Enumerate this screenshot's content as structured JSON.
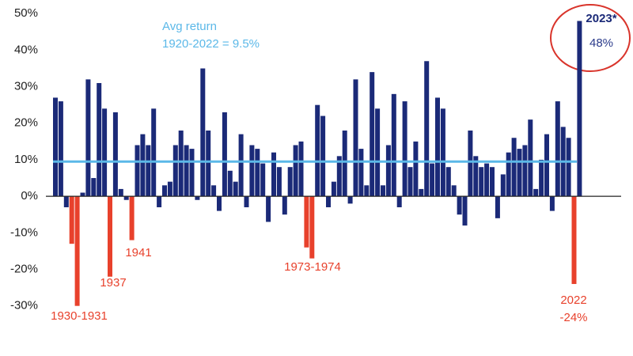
{
  "chart_data": {
    "type": "bar",
    "ylim": [
      -37,
      52
    ],
    "yticks": [
      {
        "value": 50,
        "label": "50%"
      },
      {
        "value": 40,
        "label": "40%"
      },
      {
        "value": 30,
        "label": "30%"
      },
      {
        "value": 20,
        "label": "20%"
      },
      {
        "value": 10,
        "label": "10%"
      },
      {
        "value": 0,
        "label": "0%"
      },
      {
        "value": -10,
        "label": "-10%"
      },
      {
        "value": -20,
        "label": "-20%"
      },
      {
        "value": -30,
        "label": "-30%"
      }
    ],
    "series": [
      {
        "color": "#1b2a78",
        "values": [
          27,
          26,
          -3,
          null,
          null,
          1,
          32,
          5,
          31,
          24,
          null,
          23,
          2,
          -1,
          null,
          14,
          17,
          14,
          24,
          -3,
          3,
          4,
          14,
          18,
          14,
          13,
          -1,
          35,
          18,
          3,
          -4,
          23,
          7,
          4,
          17,
          -3,
          14,
          13,
          9,
          -7,
          12,
          8,
          -5,
          8,
          14,
          15,
          null,
          null,
          25,
          22,
          -3,
          4,
          11,
          18,
          -2,
          32,
          13,
          3,
          34,
          24,
          3,
          14,
          28,
          -3,
          26,
          8,
          15,
          2,
          37,
          9,
          27,
          24,
          8,
          3,
          -5,
          -8,
          18,
          11,
          8,
          9,
          8,
          -6,
          6,
          12,
          16,
          13,
          14,
          21,
          2,
          10,
          17,
          -4,
          26,
          19,
          16,
          null,
          48
        ],
        "value_labels": [
          null,
          null,
          null,
          null,
          null,
          null,
          null,
          null,
          null,
          null,
          null,
          null,
          null,
          null,
          null,
          null,
          null,
          null,
          null,
          null,
          null,
          null,
          null,
          null,
          null,
          null,
          null,
          null,
          null,
          null,
          null,
          null,
          null,
          null,
          null,
          null,
          null,
          null,
          null,
          null,
          null,
          null,
          null,
          null,
          null,
          null,
          null,
          null,
          null,
          null,
          null,
          null,
          null,
          null,
          null,
          null,
          null,
          null,
          null,
          null,
          null,
          null,
          null,
          null,
          null,
          null,
          null,
          null,
          null,
          null,
          null,
          null,
          null,
          null,
          null,
          null,
          null,
          null,
          null,
          null,
          null,
          null,
          null,
          null,
          null,
          null,
          null,
          null,
          null,
          null,
          null,
          null,
          null,
          null,
          null,
          null,
          "48%"
        ]
      },
      {
        "color": "#e8412c",
        "values": [
          null,
          null,
          null,
          -13,
          -30,
          null,
          null,
          null,
          null,
          null,
          -22,
          null,
          null,
          null,
          -12,
          null,
          null,
          null,
          null,
          null,
          null,
          null,
          null,
          null,
          null,
          null,
          null,
          null,
          null,
          null,
          null,
          null,
          null,
          null,
          null,
          null,
          null,
          null,
          null,
          null,
          null,
          null,
          null,
          null,
          null,
          null,
          -14,
          -17,
          null,
          null,
          null,
          null,
          null,
          null,
          null,
          null,
          null,
          null,
          null,
          null,
          null,
          null,
          null,
          null,
          null,
          null,
          null,
          null,
          null,
          null,
          null,
          null,
          null,
          null,
          null,
          null,
          null,
          null,
          null,
          null,
          null,
          null,
          null,
          null,
          null,
          null,
          null,
          null,
          null,
          null,
          null,
          null,
          null,
          null,
          null,
          -24,
          null
        ],
        "value_labels": [
          null,
          null,
          null,
          null,
          null,
          null,
          null,
          null,
          null,
          null,
          null,
          null,
          null,
          null,
          null,
          null,
          null,
          null,
          null,
          null,
          null,
          null,
          null,
          null,
          null,
          null,
          null,
          null,
          null,
          null,
          null,
          null,
          null,
          null,
          null,
          null,
          null,
          null,
          null,
          null,
          null,
          null,
          null,
          null,
          null,
          null,
          null,
          null,
          null,
          null,
          null,
          null,
          null,
          null,
          null,
          null,
          null,
          null,
          null,
          null,
          null,
          null,
          null,
          null,
          null,
          null,
          null,
          null,
          null,
          null,
          null,
          null,
          null,
          null,
          null,
          null,
          null,
          null,
          null,
          null,
          null,
          null,
          null,
          null,
          null,
          null,
          null,
          null,
          null,
          null,
          null,
          null,
          null,
          null,
          null,
          "-24%",
          null
        ]
      }
    ],
    "avg_line": {
      "value": 9.5,
      "color": "#5bb8e8",
      "label": [
        "Avg return",
        "1920-2022 = 9.5%"
      ]
    },
    "annotations": [
      "1930-1931",
      "1937",
      "1941",
      "1973-1974",
      "2022",
      "2023*"
    ]
  }
}
